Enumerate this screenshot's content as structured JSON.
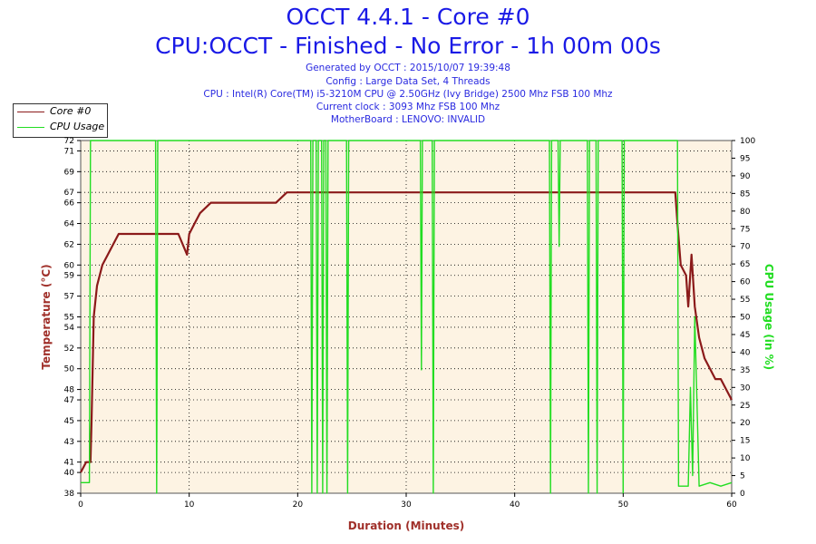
{
  "header": {
    "title": "OCCT 4.4.1 - Core #0",
    "subtitle": "CPU:OCCT - Finished - No Error - 1h 00m 00s",
    "info_lines": [
      "Generated by OCCT : 2015/10/07 19:39:48",
      "Config : Large Data Set, 4 Threads",
      "CPU : Intel(R) Core(TM) i5-3210M CPU @ 2.50GHz (Ivy Bridge) 2500 Mhz FSB 100 Mhz",
      "Current clock : 3093 Mhz FSB 100 Mhz",
      "MotherBoard : LENOVO: INVALID"
    ]
  },
  "legend": {
    "items": [
      {
        "label": "Core #0",
        "color": "#8b1a1a"
      },
      {
        "label": "CPU Usage",
        "color": "#22dd22"
      }
    ]
  },
  "chart_data": {
    "type": "line",
    "xlabel": "Duration (Minutes)",
    "ylabel_left": "Temperature (°C)",
    "ylabel_right": "CPU Usage (in %)",
    "xlim": [
      0,
      60
    ],
    "ylim_left": [
      38,
      72
    ],
    "ylim_right": [
      0,
      100
    ],
    "x_ticks": [
      0,
      10,
      20,
      30,
      40,
      50,
      60
    ],
    "y_ticks_left": [
      38,
      40,
      41,
      43,
      45,
      47,
      48,
      50,
      52,
      54,
      55,
      57,
      59,
      60,
      62,
      64,
      66,
      67,
      69,
      71,
      72
    ],
    "y_ticks_right": [
      0,
      5,
      10,
      15,
      20,
      25,
      30,
      35,
      40,
      45,
      50,
      55,
      60,
      65,
      70,
      75,
      80,
      85,
      90,
      95,
      100
    ],
    "grid": true,
    "legend_position": "top-left",
    "series": [
      {
        "name": "Core #0",
        "color": "#8b1a1a",
        "x": [
          0,
          0.5,
          0.9,
          1.0,
          1.2,
          1.5,
          2,
          2.5,
          3,
          3.5,
          4,
          5,
          6,
          7,
          8,
          9,
          9.8,
          10,
          10.5,
          11,
          12,
          13,
          14,
          15,
          16,
          17,
          18,
          19,
          20,
          22,
          25,
          28,
          30,
          32,
          35,
          38,
          40,
          43,
          45,
          47,
          50,
          53,
          54.8,
          55,
          55.3,
          55.8,
          56,
          56.3,
          56.6,
          57,
          57.5,
          58,
          58.5,
          59,
          59.5,
          60
        ],
        "values": [
          40,
          41,
          41,
          45,
          55,
          58,
          60,
          61,
          62,
          63,
          63,
          63,
          63,
          63,
          63,
          63,
          61,
          63,
          64,
          65,
          66,
          66,
          66,
          66,
          66,
          66,
          66,
          67,
          67,
          67,
          67,
          67,
          67,
          67,
          67,
          67,
          67,
          67,
          67,
          67,
          67,
          67,
          67,
          64,
          60,
          59,
          56,
          61,
          56,
          53,
          51,
          50,
          49,
          49,
          48,
          47
        ]
      },
      {
        "name": "CPU Usage",
        "color": "#22dd22",
        "x": [
          0,
          0.8,
          0.9,
          6.9,
          7.0,
          7.1,
          21.2,
          21.3,
          21.4,
          21.7,
          21.8,
          21.9,
          22.2,
          22.3,
          22.4,
          22.6,
          22.7,
          22.8,
          24.5,
          24.6,
          24.7,
          31.3,
          31.4,
          31.5,
          32.4,
          32.5,
          32.6,
          43.2,
          43.3,
          43.4,
          44.0,
          44.1,
          44.2,
          46.7,
          46.8,
          46.9,
          47.5,
          47.6,
          47.7,
          49.9,
          50.0,
          50.1,
          55.0,
          55.1,
          56.0,
          56.2,
          56.4,
          56.6,
          57,
          58,
          59,
          60
        ],
        "values": [
          3,
          3,
          100,
          100,
          0,
          100,
          100,
          0,
          100,
          100,
          0,
          100,
          100,
          0,
          100,
          100,
          0,
          100,
          100,
          0,
          100,
          100,
          35,
          100,
          100,
          0,
          100,
          100,
          0,
          100,
          100,
          70,
          100,
          100,
          0,
          100,
          100,
          0,
          100,
          100,
          0,
          100,
          100,
          2,
          2,
          30,
          5,
          50,
          2,
          3,
          2,
          3
        ]
      }
    ]
  }
}
